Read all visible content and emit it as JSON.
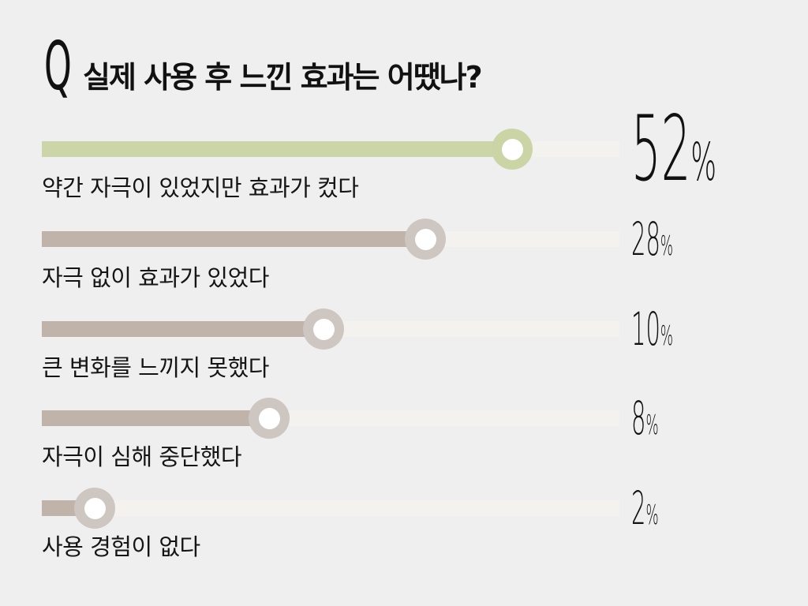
{
  "title": {
    "prefix": "Q",
    "text": "실제 사용 후 느낀 효과는 어땠나?"
  },
  "colors": {
    "background": "#efefef",
    "highlight_bar": "#ccd5a8",
    "default_bar": "#bfb3aa",
    "knob_ring": "#cdc6c1",
    "track": "#f4f2ef",
    "text": "#111111"
  },
  "rows": [
    {
      "label": "약간 자극이 있었지만 효과가 컸다",
      "value": "52",
      "unit": "%"
    },
    {
      "label": "자극 없이 효과가 있었다",
      "value": "28",
      "unit": "%"
    },
    {
      "label": "큰 변화를 느끼지 못했다",
      "value": "10",
      "unit": "%"
    },
    {
      "label": "자극이 심해 중단했다",
      "value": "8",
      "unit": "%"
    },
    {
      "label": "사용 경험이 없다",
      "value": "2",
      "unit": "%"
    }
  ],
  "chart_data": {
    "type": "bar",
    "orientation": "horizontal",
    "title": "Q 실제 사용 후 느낀 효과는 어땠나?",
    "categories": [
      "약간 자극이 있었지만 효과가 컸다",
      "자극 없이 효과가 있었다",
      "큰 변화를 느끼지 못했다",
      "자극이 심해 중단했다",
      "사용 경험이 없다"
    ],
    "values": [
      52,
      28,
      10,
      8,
      2
    ],
    "unit": "%",
    "xlabel": "",
    "ylabel": "",
    "grid": false,
    "legend": "none",
    "highlight_index": 0
  }
}
